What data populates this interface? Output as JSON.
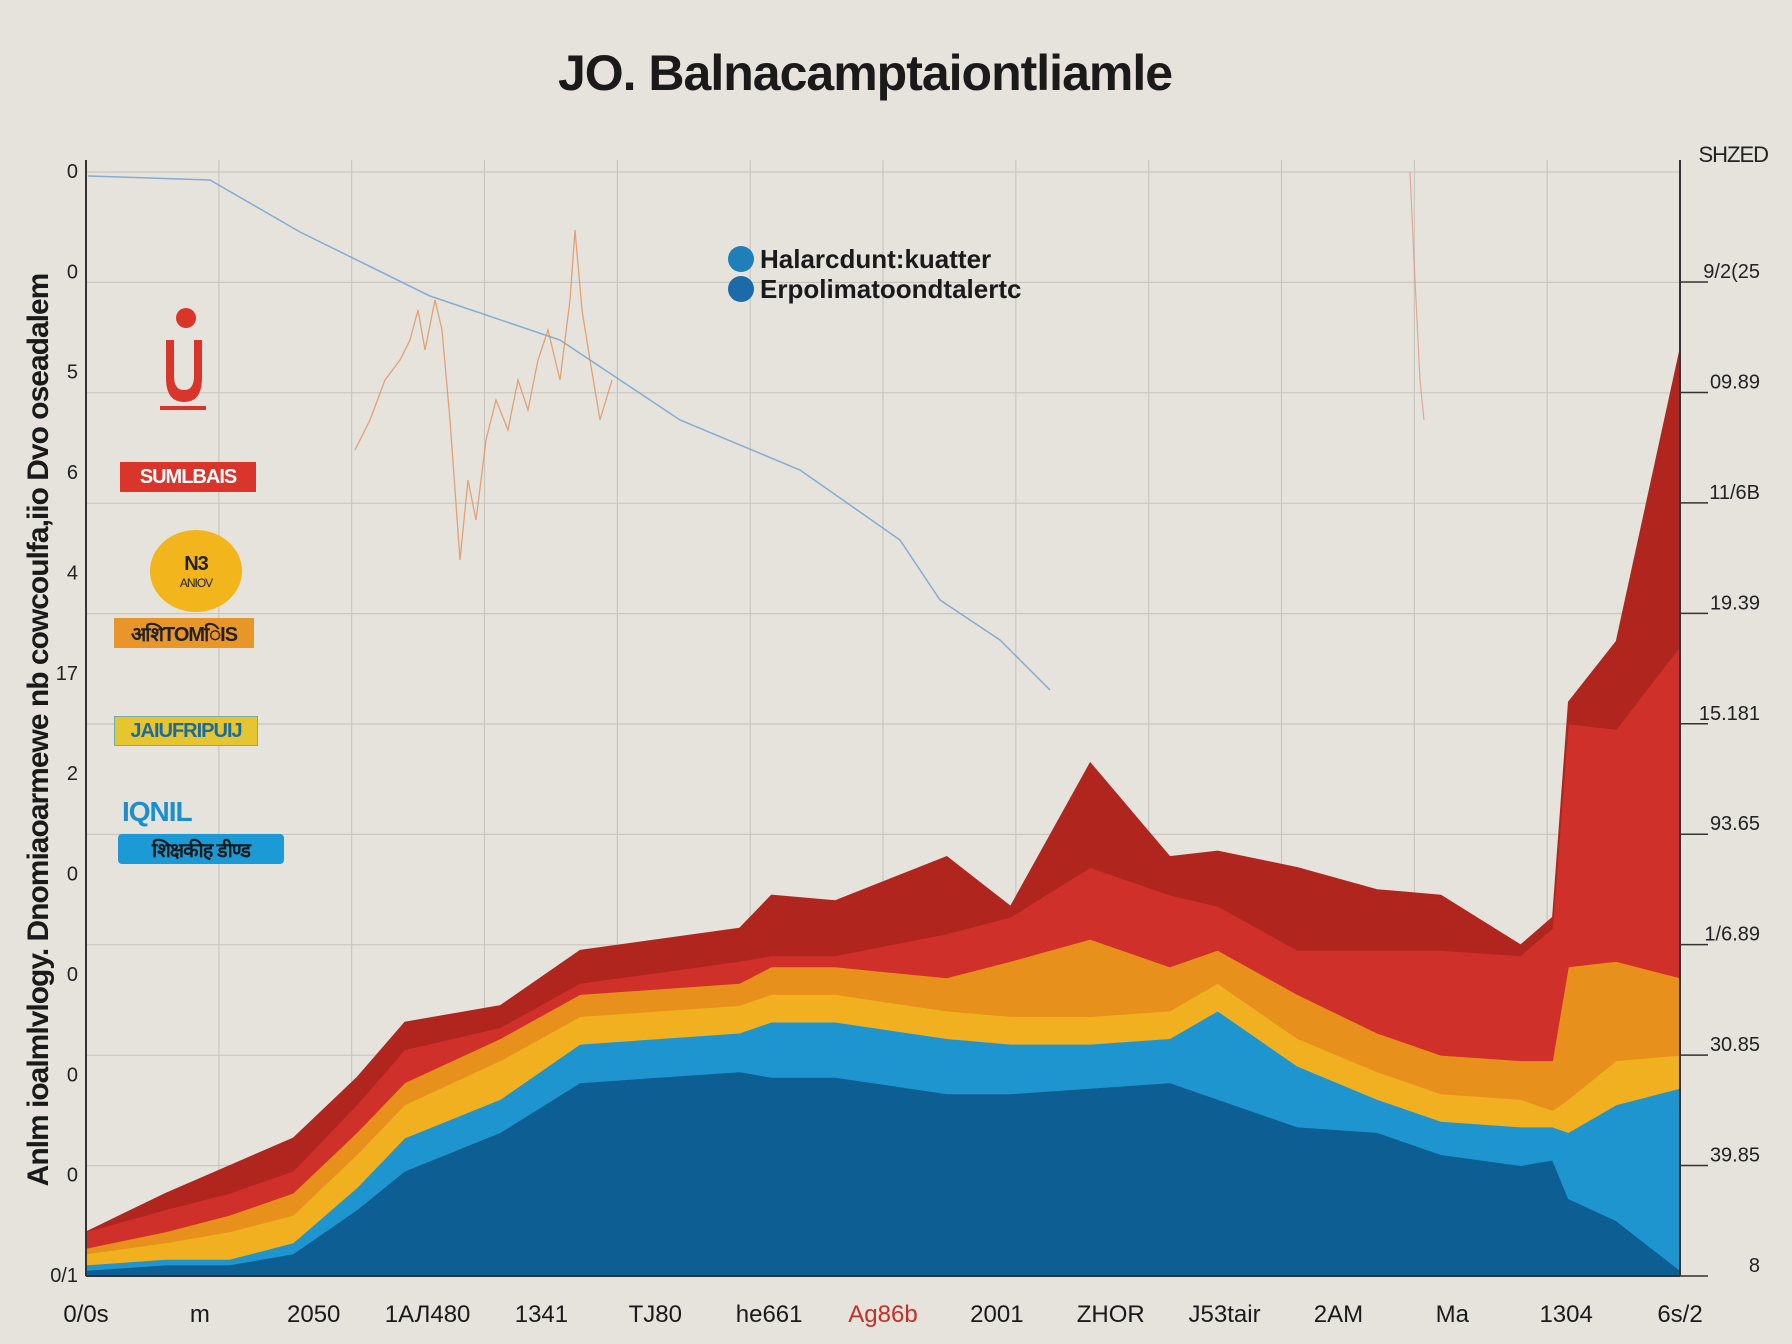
{
  "title": "JO. Balnacamptaiontliamle",
  "right_axis_title": "SHZED",
  "y_axis_title": "Anlm ioalmlvlogy. Dnomiaoarmewe nb cowcoulfa,iio Dvo oseadalem",
  "legend": [
    {
      "label": "Halarcdunt:kuatter",
      "color": "#1f7fb8"
    },
    {
      "label": "Erpolimatoondtalertc",
      "color": "#1c6aa8"
    }
  ],
  "side_badges": [
    {
      "name": "badge-red",
      "text": "SUMLBAIS",
      "color": "#d9352b"
    },
    {
      "name": "badge-circle",
      "text": "N3",
      "sub": "ANIOV",
      "color": "#f2b51c"
    },
    {
      "name": "badge-orange",
      "text": "अशिTOMिIS",
      "color": "#e8962a"
    },
    {
      "name": "badge-yellow",
      "text": "JAIUFRIPUIJ",
      "color": "#e6c630"
    },
    {
      "name": "badge-blue-text",
      "text": "IQNIL",
      "color": "#1a8fd0"
    },
    {
      "name": "badge-blue",
      "text": "शिक्षकीह डीण्ड",
      "color": "#1b9ad6"
    }
  ],
  "colors": {
    "background": "#e6e3dd",
    "dark_red": "#b0261f",
    "red": "#d0302a",
    "orange": "#e8901c",
    "yellow": "#f0b020",
    "blue": "#1f95cf",
    "dark_blue": "#0d5e92",
    "grid": "#c9c6c0"
  },
  "chart_data": {
    "type": "area",
    "title": "JO. Balnacamptaiontliamle",
    "xlabel": "",
    "ylabel": "Anlm ioalmlvlogy. Dnomiaoarmewe nb cowcoulfa,iio Dvo oseadalem",
    "x_tick_labels": [
      "0/0s",
      "m",
      "2050",
      "1АЛ480",
      "1341",
      "TJ80",
      "he661",
      "Ag86b",
      "2001",
      "ZHOR",
      "J53tair",
      "2AM",
      "Ma",
      "1304",
      "6s/2"
    ],
    "left_tick_labels": [
      "0",
      "0",
      "5",
      "6",
      "4",
      "17",
      "2",
      "0",
      "0",
      "0",
      "0",
      "0/1"
    ],
    "right_tick_labels": [
      "9/2(25",
      "09.89",
      "11/6B",
      "19.39",
      "15.181",
      "93.65",
      "1/6.89",
      "30.85",
      "39.85",
      "8"
    ],
    "ylim": [
      0,
      100
    ],
    "grid": true,
    "x": [
      0,
      5,
      9,
      13,
      17,
      20,
      26,
      31,
      41,
      43,
      47,
      54,
      58,
      63,
      68,
      71,
      76,
      81,
      85,
      90,
      92,
      93,
      96,
      100
    ],
    "series": [
      {
        "color": "#0d5e92",
        "values": [
          0.5,
          1.0,
          1.0,
          2.0,
          6.0,
          9.5,
          13.0,
          17.5,
          18.5,
          18.0,
          18.0,
          16.5,
          16.5,
          17.0,
          17.5,
          16.0,
          13.5,
          13.0,
          11.0,
          10.0,
          10.5,
          7.0,
          5.0,
          0.5
        ]
      },
      {
        "color": "#1f95cf",
        "values": [
          0.5,
          0.5,
          0.5,
          1.0,
          2.0,
          3.0,
          3.0,
          3.5,
          3.5,
          5.0,
          5.0,
          5.0,
          4.5,
          4.0,
          4.0,
          8.0,
          5.5,
          3.0,
          3.0,
          3.5,
          3.0,
          6.0,
          10.5,
          16.5
        ]
      },
      {
        "color": "#f0b020",
        "values": [
          1.0,
          1.5,
          2.5,
          2.5,
          3.0,
          3.0,
          3.5,
          2.5,
          2.5,
          2.5,
          2.5,
          2.5,
          2.5,
          2.5,
          2.5,
          2.5,
          2.5,
          2.5,
          2.5,
          2.5,
          1.5,
          3.0,
          4.0,
          3.0
        ]
      },
      {
        "color": "#e8901c",
        "values": [
          0.5,
          1.0,
          1.5,
          2.0,
          2.0,
          2.0,
          2.0,
          2.0,
          2.0,
          2.5,
          2.5,
          3.0,
          5.0,
          7.0,
          4.0,
          3.0,
          4.0,
          3.5,
          3.5,
          3.5,
          4.5,
          12.0,
          9.0,
          7.0
        ]
      },
      {
        "color": "#d0302a",
        "values": [
          1.5,
          2.0,
          2.0,
          2.0,
          2.5,
          3.0,
          1.0,
          1.0,
          2.0,
          1.0,
          1.0,
          4.0,
          4.0,
          6.5,
          6.5,
          4.0,
          4.0,
          7.5,
          9.5,
          9.5,
          12.0,
          22.0,
          21.0,
          30.0
        ]
      },
      {
        "color": "#b0261f",
        "values": [
          0.0,
          1.5,
          2.5,
          3.0,
          2.5,
          2.5,
          2.0,
          3.0,
          3.0,
          5.5,
          5.0,
          7.0,
          1.0,
          9.5,
          3.5,
          5.0,
          7.5,
          5.5,
          5.0,
          1.0,
          1.0,
          2.0,
          8.0,
          27.0
        ]
      }
    ]
  }
}
